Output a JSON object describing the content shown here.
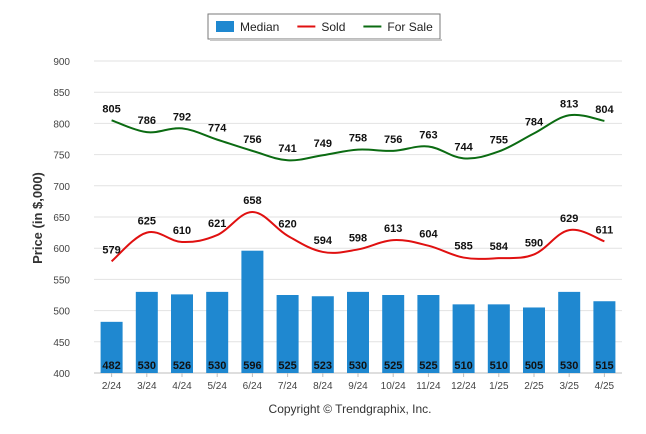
{
  "chart_data": {
    "type": "bar",
    "categories": [
      "2/24",
      "3/24",
      "4/24",
      "5/24",
      "6/24",
      "7/24",
      "8/24",
      "9/24",
      "10/24",
      "11/24",
      "12/24",
      "1/25",
      "2/25",
      "3/25",
      "4/25"
    ],
    "series": [
      {
        "name": "Median",
        "type": "bar",
        "color": "#1f88d0",
        "values": [
          482,
          530,
          526,
          530,
          596,
          525,
          523,
          530,
          525,
          525,
          510,
          510,
          505,
          530,
          515
        ]
      },
      {
        "name": "Sold",
        "type": "line",
        "color": "#e01010",
        "values": [
          579,
          625,
          610,
          621,
          658,
          620,
          594,
          598,
          613,
          604,
          585,
          584,
          590,
          629,
          611
        ]
      },
      {
        "name": "For Sale",
        "type": "line",
        "color": "#0b6b12",
        "values": [
          805,
          786,
          792,
          774,
          756,
          741,
          749,
          758,
          756,
          763,
          744,
          755,
          784,
          813,
          804
        ]
      }
    ],
    "ylabel": "Price (in $,000)",
    "xlabel": "",
    "ylim": [
      400,
      900
    ],
    "yticks": [
      400,
      450,
      500,
      550,
      600,
      650,
      700,
      750,
      800,
      850,
      900
    ],
    "grid": true,
    "legend_position": "top-center",
    "credit": "Copyright © Trendgraphix, Inc."
  }
}
